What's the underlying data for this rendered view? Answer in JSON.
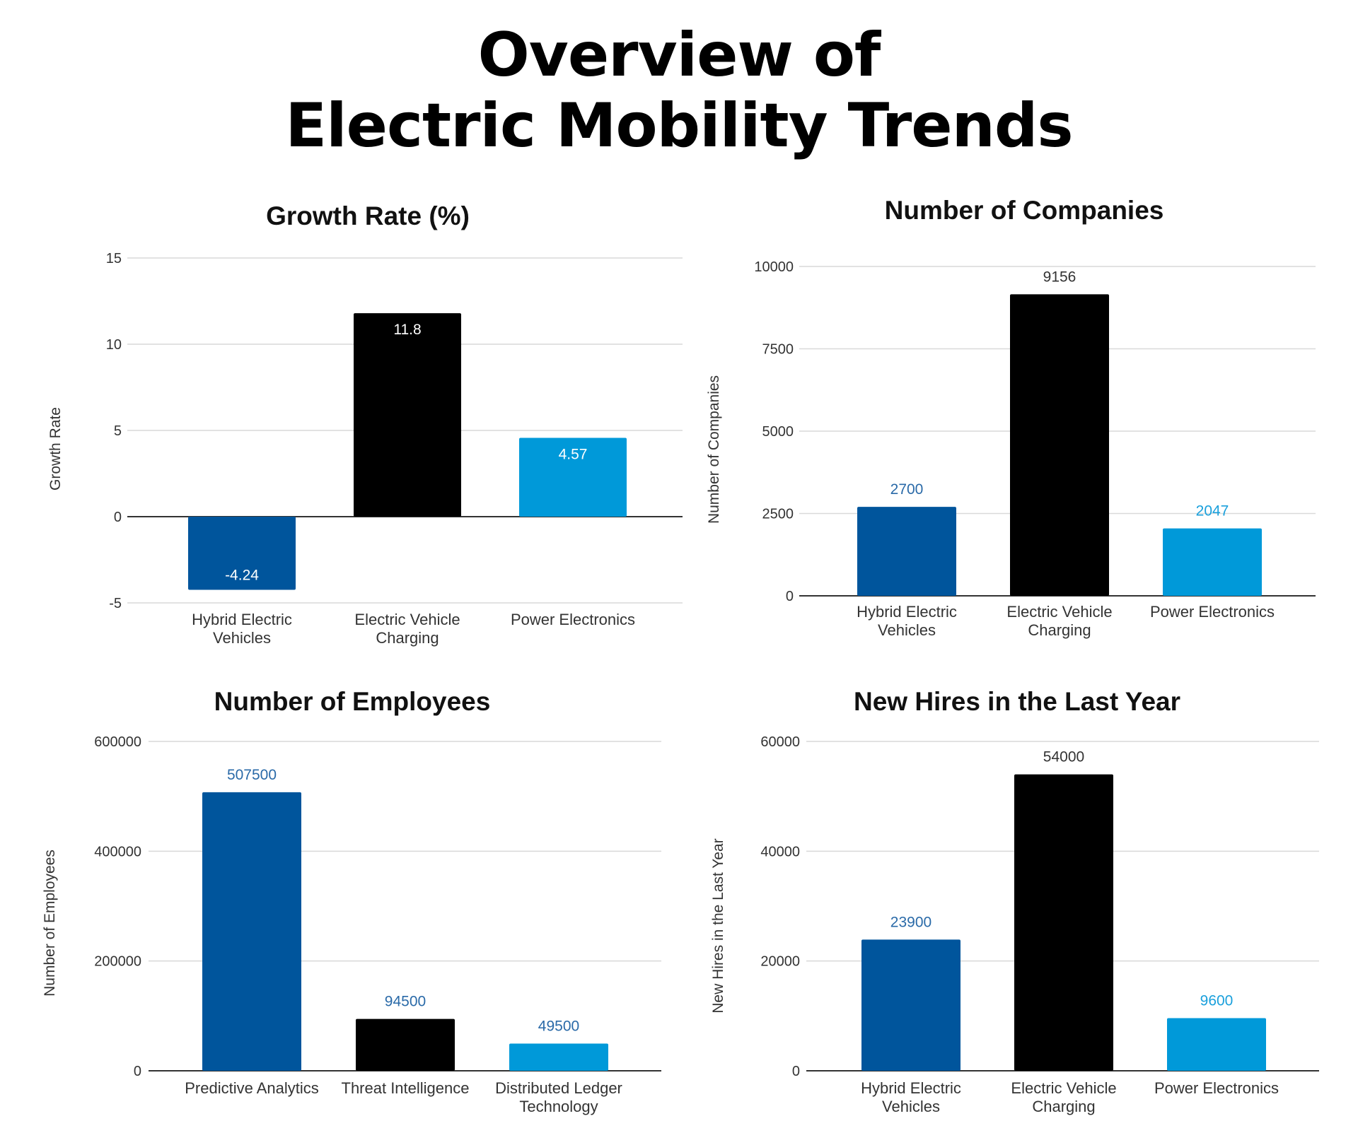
{
  "page_title": {
    "line1": "Overview of",
    "line2": "Electric Mobility Trends"
  },
  "colors": {
    "dark_blue": "#00559c",
    "black": "#000000",
    "light_blue": "#0099d9",
    "grid": "#d9d9d9",
    "axis": "#333333"
  },
  "chart_data": [
    {
      "type": "bar",
      "title": "Growth Rate (%)",
      "xlabel": "",
      "ylabel": "Growth Rate",
      "categories": [
        [
          "Hybrid Electric",
          "Vehicles"
        ],
        [
          "Electric Vehicle",
          "Charging"
        ],
        [
          "Power Electronics"
        ]
      ],
      "values": [
        -4.24,
        11.8,
        4.57
      ],
      "value_labels": [
        "-4.24",
        "11.8",
        "4.57"
      ],
      "bar_colors": [
        "#00559c",
        "#000000",
        "#0099d9"
      ],
      "label_position": "inside",
      "label_colors": [
        "#ffffff",
        "#ffffff",
        "#ffffff"
      ],
      "ylim": [
        -5,
        15
      ],
      "yticks": [
        15,
        10,
        5,
        0,
        -5
      ],
      "grid": true,
      "legend": "none"
    },
    {
      "type": "bar",
      "title": "Number of Companies",
      "xlabel": "",
      "ylabel": "Number of Companies",
      "categories": [
        [
          "Hybrid Electric",
          "Vehicles"
        ],
        [
          "Electric Vehicle",
          "Charging"
        ],
        [
          "Power Electronics"
        ]
      ],
      "values": [
        2700,
        9156,
        2047
      ],
      "value_labels": [
        "2700",
        "9156",
        "2047"
      ],
      "bar_colors": [
        "#00559c",
        "#000000",
        "#0099d9"
      ],
      "label_position": "above",
      "label_colors": [
        "#2a6aa8",
        "#333333",
        "#1aa0dc"
      ],
      "ylim": [
        0,
        10000
      ],
      "yticks": [
        10000,
        7500,
        5000,
        2500,
        0
      ],
      "grid": true,
      "legend": "none"
    },
    {
      "type": "bar",
      "title": "Number of Employees",
      "xlabel": "",
      "ylabel": "Number of Employees",
      "categories": [
        [
          "Predictive Analytics"
        ],
        [
          "Threat Intelligence"
        ],
        [
          "Distributed Ledger",
          "Technology"
        ]
      ],
      "values": [
        507500,
        94500,
        49500
      ],
      "value_labels": [
        "507500",
        "94500",
        "49500"
      ],
      "bar_colors": [
        "#00559c",
        "#000000",
        "#0099d9"
      ],
      "label_position": "above",
      "label_colors": [
        "#2a6aa8",
        "#2a6aa8",
        "#2a6aa8"
      ],
      "ylim": [
        0,
        600000
      ],
      "yticks": [
        600000,
        400000,
        200000,
        0
      ],
      "grid": true,
      "legend": "none"
    },
    {
      "type": "bar",
      "title": "New Hires in the Last Year",
      "xlabel": "",
      "ylabel": "New Hires in the Last Year",
      "categories": [
        [
          "Hybrid Electric",
          "Vehicles"
        ],
        [
          "Electric Vehicle",
          "Charging"
        ],
        [
          "Power Electronics"
        ]
      ],
      "values": [
        23900,
        54000,
        9600
      ],
      "value_labels": [
        "23900",
        "54000",
        "9600"
      ],
      "bar_colors": [
        "#00559c",
        "#000000",
        "#0099d9"
      ],
      "label_position": "above",
      "label_colors": [
        "#2a6aa8",
        "#333333",
        "#1aa0dc"
      ],
      "ylim": [
        0,
        60000
      ],
      "yticks": [
        60000,
        40000,
        20000,
        0
      ],
      "grid": true,
      "legend": "none"
    }
  ]
}
